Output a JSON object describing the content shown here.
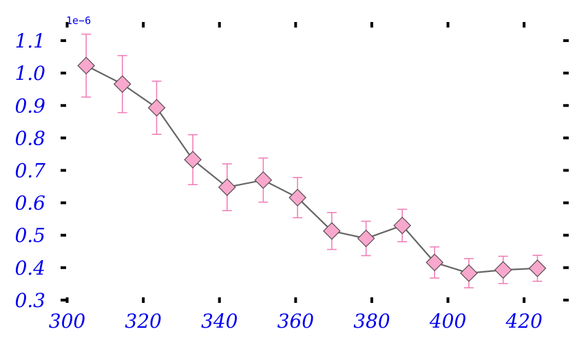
{
  "chart_data": {
    "type": "scatter",
    "title": "",
    "xlabel": "",
    "ylabel": "",
    "y_offset_text": "1e−6",
    "xlim": [
      299,
      431
    ],
    "ylim": [
      0.285,
      1.185
    ],
    "x_ticks": [
      300,
      320,
      340,
      360,
      380,
      400,
      420
    ],
    "x_tick_labels": [
      "300",
      "320",
      "340",
      "360",
      "380",
      "400",
      "420"
    ],
    "y_ticks": [
      0.3,
      0.4,
      0.5,
      0.6,
      0.7,
      0.8,
      0.9,
      1.0,
      1.1
    ],
    "y_tick_labels": [
      "0.3",
      "0.4",
      "0.5",
      "0.6",
      "0.7",
      "0.8",
      "0.9",
      "1.0",
      "1.1"
    ],
    "grid": false,
    "marker": "diamond",
    "colors": {
      "line": "#666666",
      "marker_fill": "#f8a8cc",
      "marker_edge": "#5a4a52",
      "errorbar": "#f080b8",
      "tick_label": "#0000ee",
      "tick": "#000000"
    },
    "series": [
      {
        "x": [
          305,
          314.5,
          323.5,
          333,
          342,
          351.5,
          360.5,
          369.5,
          378.5,
          388,
          396.5,
          405.5,
          414.5,
          423.5
        ],
        "y": [
          1.023,
          0.966,
          0.893,
          0.733,
          0.648,
          0.67,
          0.616,
          0.513,
          0.49,
          0.53,
          0.416,
          0.383,
          0.393,
          0.398
        ],
        "yerr": [
          0.097,
          0.088,
          0.082,
          0.077,
          0.072,
          0.068,
          0.062,
          0.057,
          0.053,
          0.05,
          0.048,
          0.045,
          0.042,
          0.04
        ]
      }
    ]
  }
}
